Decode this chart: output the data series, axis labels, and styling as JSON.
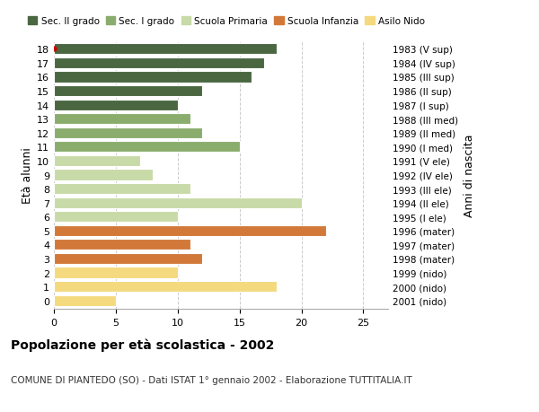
{
  "ages": [
    0,
    1,
    2,
    3,
    4,
    5,
    6,
    7,
    8,
    9,
    10,
    11,
    12,
    13,
    14,
    15,
    16,
    17,
    18
  ],
  "values": [
    5,
    18,
    10,
    12,
    11,
    22,
    10,
    20,
    11,
    8,
    7,
    15,
    12,
    11,
    10,
    12,
    16,
    17,
    18
  ],
  "right_labels": [
    "2001 (nido)",
    "2000 (nido)",
    "1999 (nido)",
    "1998 (mater)",
    "1997 (mater)",
    "1996 (mater)",
    "1995 (I ele)",
    "1994 (II ele)",
    "1993 (III ele)",
    "1992 (IV ele)",
    "1991 (V ele)",
    "1990 (I med)",
    "1989 (II med)",
    "1988 (III med)",
    "1987 (I sup)",
    "1986 (II sup)",
    "1985 (III sup)",
    "1984 (IV sup)",
    "1983 (V sup)"
  ],
  "colors": [
    "#f5d97e",
    "#f5d97e",
    "#f5d97e",
    "#d2793a",
    "#d2793a",
    "#d2793a",
    "#c8daa8",
    "#c8daa8",
    "#c8daa8",
    "#c8daa8",
    "#c8daa8",
    "#8aad6e",
    "#8aad6e",
    "#8aad6e",
    "#4a6741",
    "#4a6741",
    "#4a6741",
    "#4a6741",
    "#4a6741"
  ],
  "legend_labels": [
    "Sec. II grado",
    "Sec. I grado",
    "Scuola Primaria",
    "Scuola Infanzia",
    "Asilo Nido"
  ],
  "legend_colors": [
    "#4a6741",
    "#8aad6e",
    "#c8daa8",
    "#d2793a",
    "#f5d97e"
  ],
  "ylabel_left": "Età alunni",
  "ylabel_right": "Anni di nascita",
  "title": "Popolazione per età scolastica - 2002",
  "subtitle": "COMUNE DI PIANTEDO (SO) - Dati ISTAT 1° gennaio 2002 - Elaborazione TUTTITALIA.IT",
  "xlim": [
    0,
    27
  ],
  "xticks": [
    0,
    5,
    10,
    15,
    20,
    25
  ],
  "background_color": "#ffffff",
  "bar_height": 0.78,
  "grid_color": "#cccccc",
  "dot_age": 18,
  "dot_color": "#cc0000"
}
